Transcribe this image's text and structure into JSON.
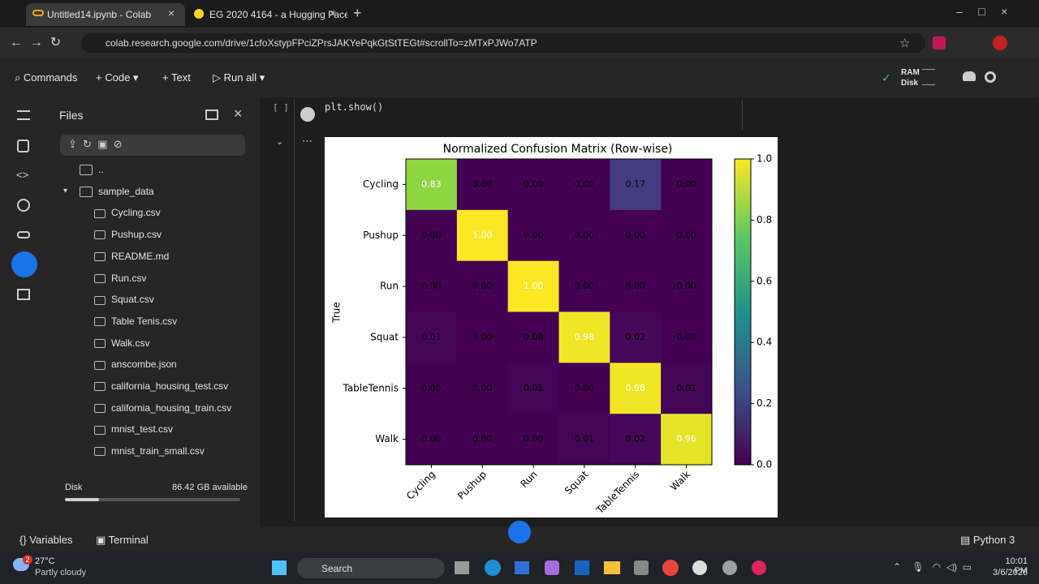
{
  "browser": {
    "tabs": [
      "Untitled14.ipynb - Colab",
      "EG 2020 4164 - a Hugging Face"
    ],
    "url": "colab.research.google.com/drive/1cfoXstypFPciZPrsJAKYePqkGtStTEGt#scrollTo=zMTxPJWo7ATP"
  },
  "toolbar": {
    "commands": "Commands",
    "code": "Code",
    "text": "Text",
    "run_all": "Run all",
    "ram": "RAM",
    "disk": "Disk"
  },
  "files": {
    "title": "Files",
    "items": [
      "..",
      "sample_data",
      "Cycling.csv",
      "Pushup.csv",
      "README.md",
      "Run.csv",
      "Squat.csv",
      "Table Tenis.csv",
      "Walk.csv",
      "anscombe.json",
      "california_housing_test.csv",
      "california_housing_train.csv",
      "mnist_test.csv",
      "mnist_train_small.csv"
    ],
    "disk_label": "Disk",
    "disk_available": "86.42 GB available"
  },
  "cell": {
    "prompt": "[ ]",
    "code": "plt.show()"
  },
  "chart_data": {
    "type": "heatmap",
    "title": "Normalized Confusion Matrix (Row-wise)",
    "ylabel": "True",
    "categories": [
      "Cycling",
      "Pushup",
      "Run",
      "Squat",
      "TableTennis",
      "Walk"
    ],
    "rows": [
      "Cycling",
      "Pushup",
      "Run",
      "Squat",
      "TableTennis",
      "Walk"
    ],
    "values": [
      [
        0.83,
        0,
        0,
        0,
        0.17,
        0
      ],
      [
        0,
        1,
        0,
        0,
        0,
        0
      ],
      [
        0,
        0,
        1,
        0,
        0,
        0
      ],
      [
        0.01,
        0,
        0,
        0.98,
        0.02,
        0
      ],
      [
        0,
        0,
        0.01,
        0,
        0.98,
        0.01
      ],
      [
        0,
        0,
        0,
        0.01,
        0.02,
        0.96
      ]
    ],
    "value_labels": [
      [
        "0.83",
        "0.00",
        "0.00",
        "0.00",
        "0.17",
        "0.00"
      ],
      [
        "0.00",
        "1.00",
        "0.00",
        "0.00",
        "0.00",
        "0.00"
      ],
      [
        "0.00",
        "0.00",
        "1.00",
        "0.00",
        "0.00",
        "0.00"
      ],
      [
        "0.01",
        "0.00",
        "0.00",
        "0.98",
        "0.02",
        "0.00"
      ],
      [
        "0.00",
        "0.00",
        "0.01",
        "0.00",
        "0.98",
        "0.01"
      ],
      [
        "0.00",
        "0.00",
        "0.00",
        "0.01",
        "0.02",
        "0.96"
      ]
    ],
    "colormap": "viridis",
    "clim": [
      0,
      1
    ],
    "colorbar_ticks": [
      {
        "value": 0,
        "label": "0.0"
      },
      0.2,
      0.4,
      0.6,
      0.8,
      {
        "value": 1,
        "label": "1.0"
      }
    ]
  },
  "status": {
    "variables": "Variables",
    "terminal": "Terminal",
    "runtime": "Python 3"
  },
  "taskbar": {
    "badge": "2",
    "temperature": "27°C",
    "weather": "Partly cloudy",
    "search": "Search",
    "time": "10:01 PM",
    "date": "3/6/2026"
  }
}
